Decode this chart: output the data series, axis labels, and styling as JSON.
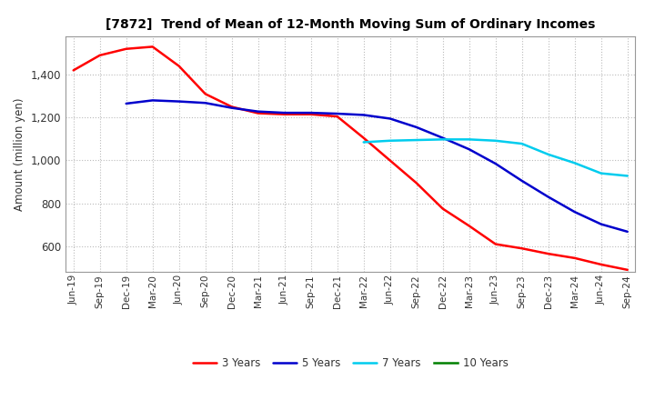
{
  "title": "[7872]  Trend of Mean of 12-Month Moving Sum of Ordinary Incomes",
  "ylabel": "Amount (million yen)",
  "background_color": "#ffffff",
  "grid_color": "#bbbbbb",
  "ylim": [
    480,
    1580
  ],
  "yticks": [
    600,
    800,
    1000,
    1200,
    1400
  ],
  "x_labels": [
    "Jun-19",
    "Sep-19",
    "Dec-19",
    "Mar-20",
    "Jun-20",
    "Sep-20",
    "Dec-20",
    "Mar-21",
    "Jun-21",
    "Sep-21",
    "Dec-21",
    "Mar-22",
    "Jun-22",
    "Sep-22",
    "Dec-22",
    "Mar-23",
    "Jun-23",
    "Sep-23",
    "Dec-23",
    "Mar-24",
    "Jun-24",
    "Sep-24"
  ],
  "series": {
    "3 Years": {
      "color": "#ff0000",
      "data_x": [
        0,
        1,
        2,
        3,
        4,
        5,
        6,
        7,
        8,
        9,
        10,
        11,
        12,
        13,
        14,
        15,
        16,
        17,
        18,
        19,
        20,
        21
      ],
      "data_y": [
        1420,
        1490,
        1520,
        1530,
        1440,
        1310,
        1250,
        1220,
        1215,
        1215,
        1205,
        1105,
        1000,
        895,
        775,
        695,
        610,
        590,
        565,
        545,
        515,
        490
      ]
    },
    "5 Years": {
      "color": "#0000cc",
      "data_x": [
        2,
        3,
        4,
        5,
        6,
        7,
        8,
        9,
        10,
        11,
        12,
        13,
        14,
        15,
        16,
        17,
        18,
        19,
        20,
        21
      ],
      "data_y": [
        1265,
        1280,
        1275,
        1268,
        1245,
        1228,
        1222,
        1222,
        1218,
        1212,
        1195,
        1155,
        1105,
        1052,
        985,
        905,
        830,
        760,
        703,
        668
      ]
    },
    "7 Years": {
      "color": "#00ccee",
      "data_x": [
        11,
        12,
        13,
        14,
        15,
        16,
        17,
        18,
        19,
        20,
        21
      ],
      "data_y": [
        1085,
        1092,
        1095,
        1098,
        1098,
        1092,
        1078,
        1028,
        988,
        940,
        928
      ]
    },
    "10 Years": {
      "color": "#008000",
      "data_x": [],
      "data_y": []
    }
  },
  "legend_order": [
    "3 Years",
    "5 Years",
    "7 Years",
    "10 Years"
  ]
}
